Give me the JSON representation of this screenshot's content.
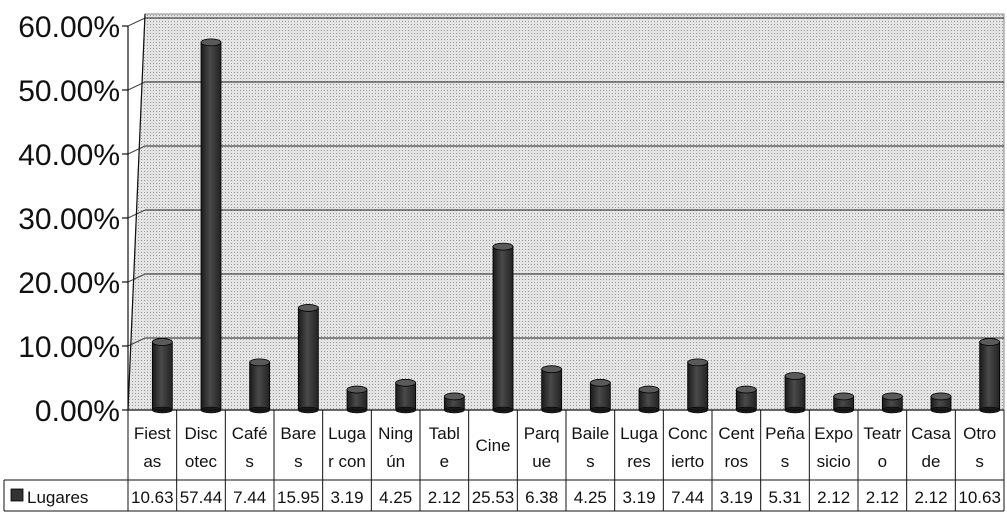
{
  "chart_data": {
    "type": "bar",
    "categories": [
      [
        "Fiest",
        "as"
      ],
      [
        "Disc",
        "otec"
      ],
      [
        "Café",
        "s"
      ],
      [
        "Bare",
        "s"
      ],
      [
        "Luga",
        "r con"
      ],
      [
        "Ning",
        "ún"
      ],
      [
        "Tabl",
        "e"
      ],
      [
        "Cine"
      ],
      [
        "Parq",
        "ue"
      ],
      [
        "Baile",
        "s"
      ],
      [
        "Luga",
        "res"
      ],
      [
        "Conc",
        "ierto"
      ],
      [
        "Cent",
        "ros"
      ],
      [
        "Peña",
        "s"
      ],
      [
        "Expo",
        "sicio"
      ],
      [
        "Teatr",
        "o"
      ],
      [
        "Casa",
        "de"
      ],
      [
        "Otro",
        "s"
      ]
    ],
    "series": [
      {
        "name": "Lugares",
        "values": [
          10.63,
          57.44,
          7.44,
          15.95,
          3.19,
          4.25,
          2.12,
          25.53,
          6.38,
          4.25,
          3.19,
          7.44,
          3.19,
          5.31,
          2.12,
          2.12,
          2.12,
          10.63
        ],
        "value_labels": [
          "10.63",
          "57.44",
          "7.44",
          "15.95",
          "3.19",
          "4.25",
          "2.12",
          "25.53",
          "6.38",
          "4.25",
          "3.19",
          "7.44",
          "3.19",
          "5.31",
          "2.12",
          "2.12",
          "2.12",
          "10.63"
        ],
        "color": "#333333"
      }
    ],
    "yticks": [
      "0.00%",
      "10.00%",
      "20.00%",
      "30.00%",
      "40.00%",
      "50.00%",
      "60.00%"
    ],
    "ylim": [
      0,
      60
    ],
    "grid": true,
    "data_table": true,
    "plot_background": "#dcdcdc"
  }
}
